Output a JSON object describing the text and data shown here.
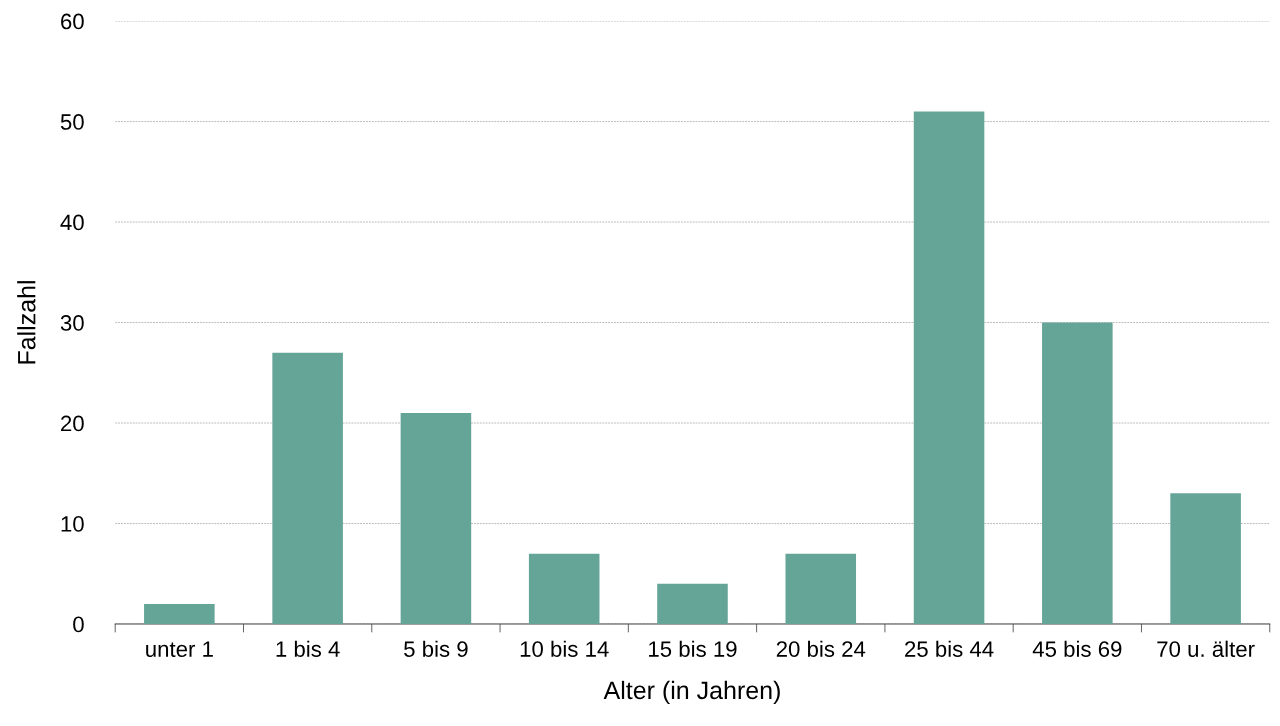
{
  "chart_data": {
    "type": "bar",
    "xlabel": "Alter (in Jahren)",
    "ylabel": "Fallzahl",
    "categories": [
      "unter 1",
      "1 bis 4",
      "5 bis 9",
      "10 bis 14",
      "15 bis 19",
      "20 bis 24",
      "25 bis 44",
      "45 bis 69",
      "70 u. älter"
    ],
    "values": [
      2,
      27,
      21,
      7,
      4,
      7,
      51,
      30,
      13
    ],
    "color": "#64a597",
    "ylim": [
      0,
      60
    ],
    "yticks": [
      0,
      10,
      20,
      30,
      40,
      50,
      60
    ],
    "grid": "y"
  }
}
